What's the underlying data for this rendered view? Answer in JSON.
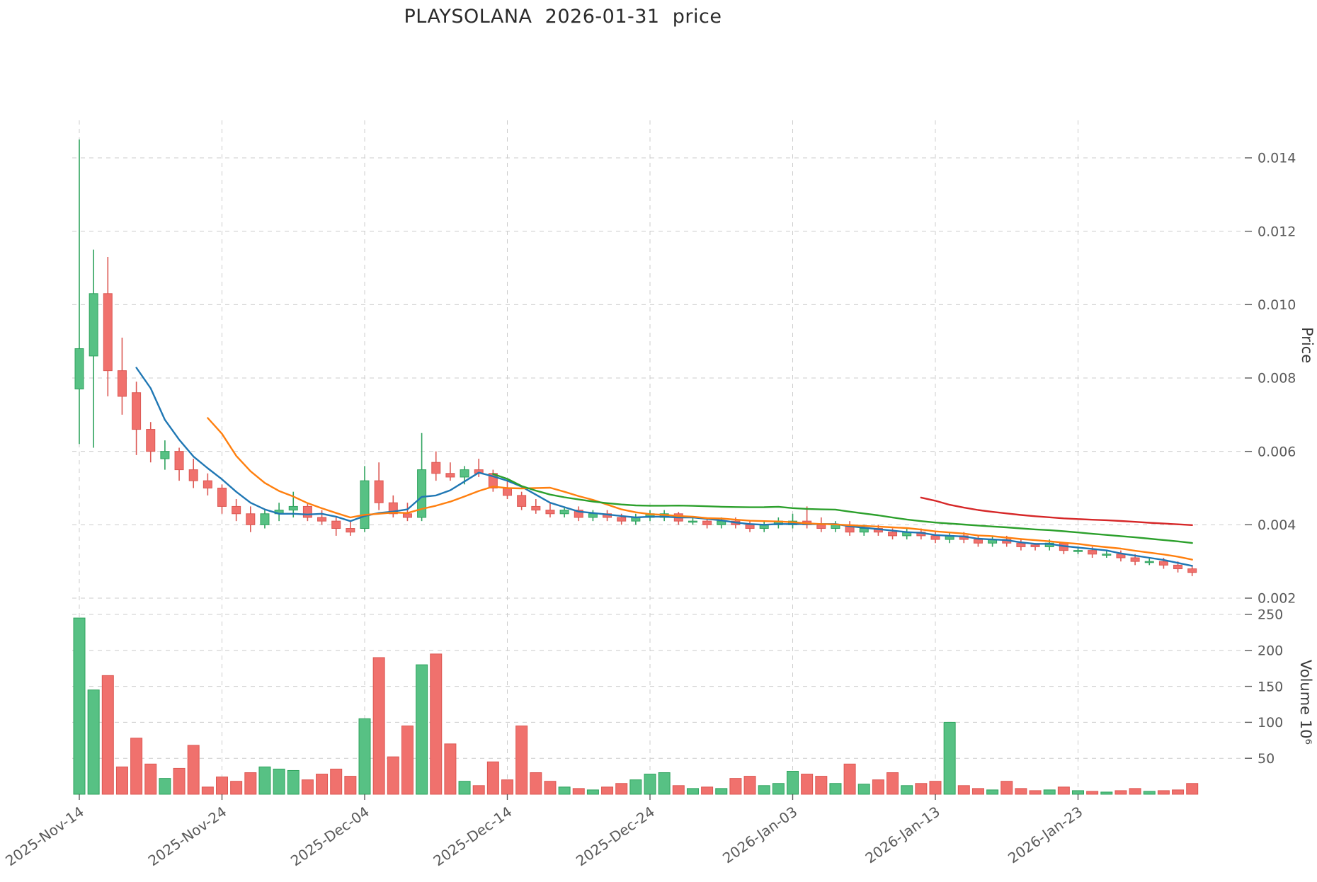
{
  "title": "PLAYSOLANA  2026-01-31  price",
  "axes": {
    "price_label": "Price",
    "volume_label": "Volume  10⁶"
  },
  "style": {
    "background": "#ffffff",
    "grid": "#cccccc",
    "tick_text": "#5a5a5a",
    "title_text": "#2b2b2b",
    "up": "#57c184",
    "up_edge": "#2fa35e",
    "down": "#f0716d",
    "down_edge": "#dc5853"
  },
  "chart_data": {
    "type": "candlestick",
    "title": "PLAYSOLANA  2026-01-31  price",
    "ylabel": "Price",
    "ylabel2": "Volume  10⁶",
    "legend_position": "none",
    "grid": "dashed",
    "price_axis": {
      "ticks": [
        0.002,
        0.004,
        0.006,
        0.008,
        0.01,
        0.012,
        0.014
      ],
      "range": [
        0.0019,
        0.0151
      ]
    },
    "volume_axis": {
      "ticks": [
        50,
        100,
        150,
        200,
        250
      ],
      "range": [
        0,
        260
      ],
      "unit": "1e6"
    },
    "x_ticks": [
      {
        "index": 0,
        "label": "2025-Nov-14"
      },
      {
        "index": 10,
        "label": "2025-Nov-24"
      },
      {
        "index": 20,
        "label": "2025-Dec-04"
      },
      {
        "index": 30,
        "label": "2025-Dec-14"
      },
      {
        "index": 40,
        "label": "2025-Dec-24"
      },
      {
        "index": 50,
        "label": "2026-Jan-03"
      },
      {
        "index": 60,
        "label": "2026-Jan-13"
      },
      {
        "index": 70,
        "label": "2026-Jan-23"
      }
    ],
    "moving_averages": [
      {
        "period": 5,
        "color": "#1f77b4"
      },
      {
        "period": 10,
        "color": "#ff7f0e"
      },
      {
        "period": 30,
        "color": "#2ca02c"
      },
      {
        "period": 60,
        "color": "#d62728"
      }
    ],
    "dates": [
      "2025-11-14",
      "2025-11-15",
      "2025-11-16",
      "2025-11-17",
      "2025-11-18",
      "2025-11-19",
      "2025-11-20",
      "2025-11-21",
      "2025-11-22",
      "2025-11-23",
      "2025-11-24",
      "2025-11-25",
      "2025-11-26",
      "2025-11-27",
      "2025-11-28",
      "2025-11-29",
      "2025-11-30",
      "2025-12-01",
      "2025-12-02",
      "2025-12-03",
      "2025-12-04",
      "2025-12-05",
      "2025-12-06",
      "2025-12-07",
      "2025-12-08",
      "2025-12-09",
      "2025-12-10",
      "2025-12-11",
      "2025-12-12",
      "2025-12-13",
      "2025-12-14",
      "2025-12-15",
      "2025-12-16",
      "2025-12-17",
      "2025-12-18",
      "2025-12-19",
      "2025-12-20",
      "2025-12-21",
      "2025-12-22",
      "2025-12-23",
      "2025-12-24",
      "2025-12-25",
      "2025-12-26",
      "2025-12-27",
      "2025-12-28",
      "2025-12-29",
      "2025-12-30",
      "2025-12-31",
      "2026-01-01",
      "2026-01-02",
      "2026-01-03",
      "2026-01-04",
      "2026-01-05",
      "2026-01-06",
      "2026-01-07",
      "2026-01-08",
      "2026-01-09",
      "2026-01-10",
      "2026-01-11",
      "2026-01-12",
      "2026-01-13",
      "2026-01-14",
      "2026-01-15",
      "2026-01-16",
      "2026-01-17",
      "2026-01-18",
      "2026-01-19",
      "2026-01-20",
      "2026-01-21",
      "2026-01-22",
      "2026-01-23",
      "2026-01-24",
      "2026-01-25",
      "2026-01-26",
      "2026-01-27",
      "2026-01-28",
      "2026-01-29",
      "2026-01-30",
      "2026-01-31"
    ],
    "open": [
      0.0077,
      0.0086,
      0.0103,
      0.0082,
      0.0076,
      0.0066,
      0.0058,
      0.006,
      0.0055,
      0.0052,
      0.005,
      0.0045,
      0.0043,
      0.004,
      0.0043,
      0.0044,
      0.0045,
      0.0042,
      0.0041,
      0.0039,
      0.0039,
      0.0052,
      0.0046,
      0.0043,
      0.0042,
      0.0057,
      0.0054,
      0.0053,
      0.0055,
      0.0054,
      0.005,
      0.0048,
      0.0045,
      0.0044,
      0.0043,
      0.0044,
      0.0042,
      0.0043,
      0.0042,
      0.0041,
      0.0042,
      0.0042,
      0.0043,
      0.0041,
      0.0041,
      0.004,
      0.0041,
      0.004,
      0.0039,
      0.004,
      0.004,
      0.0041,
      0.004,
      0.0039,
      0.004,
      0.0038,
      0.0039,
      0.0038,
      0.0037,
      0.0038,
      0.0037,
      0.0036,
      0.0037,
      0.0036,
      0.0035,
      0.0036,
      0.0035,
      0.00345,
      0.0034,
      0.0035,
      0.0033,
      0.0033,
      0.0032,
      0.0032,
      0.0031,
      0.003,
      0.003,
      0.0029,
      0.0028
    ],
    "high": [
      0.0145,
      0.0115,
      0.0113,
      0.0091,
      0.0079,
      0.0068,
      0.0063,
      0.0061,
      0.0058,
      0.0054,
      0.0051,
      0.0047,
      0.0045,
      0.0044,
      0.0046,
      0.0049,
      0.0046,
      0.0044,
      0.0042,
      0.0041,
      0.0056,
      0.0057,
      0.0048,
      0.0046,
      0.0065,
      0.006,
      0.0057,
      0.0056,
      0.0058,
      0.0055,
      0.0052,
      0.0049,
      0.0047,
      0.0046,
      0.0045,
      0.0045,
      0.0044,
      0.0044,
      0.0043,
      0.0043,
      0.0044,
      0.0044,
      0.00435,
      0.0042,
      0.0042,
      0.0042,
      0.0042,
      0.0041,
      0.0041,
      0.0042,
      0.0043,
      0.0045,
      0.0042,
      0.0041,
      0.0041,
      0.004,
      0.004,
      0.0039,
      0.0039,
      0.0039,
      0.0038,
      0.0038,
      0.0038,
      0.0037,
      0.0037,
      0.0037,
      0.0036,
      0.0035,
      0.0036,
      0.0035,
      0.0034,
      0.0034,
      0.0033,
      0.0033,
      0.0032,
      0.0031,
      0.0031,
      0.003,
      0.0029
    ],
    "low": [
      0.0062,
      0.0061,
      0.0075,
      0.007,
      0.0059,
      0.0057,
      0.0055,
      0.0052,
      0.005,
      0.0048,
      0.0043,
      0.0041,
      0.0038,
      0.0039,
      0.0041,
      0.0042,
      0.0041,
      0.004,
      0.0037,
      0.0037,
      0.0038,
      0.0044,
      0.0042,
      0.0041,
      0.0041,
      0.0052,
      0.0052,
      0.0051,
      0.0053,
      0.0049,
      0.0047,
      0.0044,
      0.0043,
      0.0042,
      0.0042,
      0.0041,
      0.0041,
      0.0041,
      0.004,
      0.004,
      0.0041,
      0.0041,
      0.004,
      0.004,
      0.0039,
      0.0039,
      0.0039,
      0.0038,
      0.0038,
      0.0039,
      0.0039,
      0.0039,
      0.0038,
      0.0038,
      0.0037,
      0.0037,
      0.0037,
      0.0036,
      0.0036,
      0.0036,
      0.0035,
      0.0035,
      0.0035,
      0.0034,
      0.0034,
      0.0034,
      0.0033,
      0.0033,
      0.0033,
      0.0032,
      0.0032,
      0.0031,
      0.0031,
      0.003,
      0.0029,
      0.0029,
      0.0028,
      0.0027,
      0.0026
    ],
    "close": [
      0.0088,
      0.0103,
      0.0082,
      0.0075,
      0.0066,
      0.006,
      0.006,
      0.0055,
      0.0052,
      0.005,
      0.0045,
      0.0043,
      0.004,
      0.0043,
      0.0044,
      0.0045,
      0.0042,
      0.0041,
      0.0039,
      0.0038,
      0.0052,
      0.0046,
      0.0043,
      0.0042,
      0.0055,
      0.0054,
      0.0053,
      0.0055,
      0.0054,
      0.005,
      0.0048,
      0.0045,
      0.0044,
      0.0043,
      0.0044,
      0.0042,
      0.0043,
      0.0042,
      0.0041,
      0.0042,
      0.0043,
      0.0043,
      0.0041,
      0.0041,
      0.004,
      0.0041,
      0.004,
      0.0039,
      0.004,
      0.0041,
      0.0041,
      0.004,
      0.0039,
      0.004,
      0.0038,
      0.0039,
      0.0038,
      0.0037,
      0.0038,
      0.0037,
      0.0036,
      0.0037,
      0.0036,
      0.0035,
      0.0036,
      0.0035,
      0.0034,
      0.0034,
      0.0035,
      0.0033,
      0.0033,
      0.0032,
      0.0032,
      0.0031,
      0.003,
      0.003,
      0.0029,
      0.0028,
      0.0027
    ],
    "volume_millions": [
      245,
      145,
      165,
      38,
      78,
      42,
      22,
      36,
      68,
      10,
      24,
      18,
      30,
      38,
      35,
      33,
      20,
      28,
      35,
      25,
      105,
      190,
      52,
      95,
      180,
      195,
      70,
      18,
      12,
      45,
      20,
      95,
      30,
      18,
      10,
      8,
      6,
      10,
      15,
      20,
      28,
      30,
      12,
      8,
      10,
      8,
      22,
      25,
      12,
      15,
      32,
      28,
      25,
      15,
      42,
      14,
      20,
      30,
      12,
      15,
      18,
      100,
      12,
      8,
      6,
      18,
      8,
      5,
      6,
      10,
      5,
      4,
      3,
      5,
      8,
      4,
      5,
      6,
      15
    ]
  }
}
